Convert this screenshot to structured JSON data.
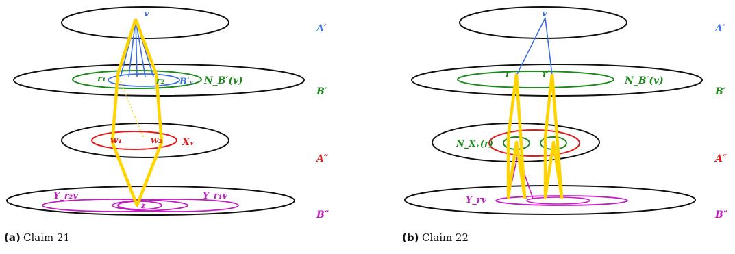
{
  "colors": {
    "blue": "#3b6fe0",
    "green": "#1e8a1e",
    "red": "#e01b1b",
    "magenta": "#c21bc2",
    "yellow": "#ffd400",
    "black": "#111111"
  },
  "panel_a": {
    "caption_tag": "(a)",
    "caption_text": "Claim 21",
    "layers": {
      "a1": "A′",
      "b1": "B′",
      "a2": "A″",
      "b2": "B″"
    },
    "labels": {
      "v": "v",
      "r1": "r₁",
      "r2": "r₂",
      "bv": "B′ᵥ",
      "nb": "N_B′(v)",
      "w1": "w₁",
      "w2": "w₂",
      "xv": "Xᵥ",
      "yr2v": "Y_r₂v",
      "yr1v": "Y_r₁v",
      "z": "z"
    }
  },
  "panel_b": {
    "caption_tag": "(b)",
    "caption_text": "Claim 22",
    "layers": {
      "a1": "A′",
      "b1": "B′",
      "a2": "A″",
      "b2": "B″"
    },
    "labels": {
      "v": "v",
      "r": "r",
      "rp": "r′",
      "nb": "N_B′(v)",
      "nx": "N_Xᵥ(r)",
      "yrv": "Y_rv"
    }
  }
}
